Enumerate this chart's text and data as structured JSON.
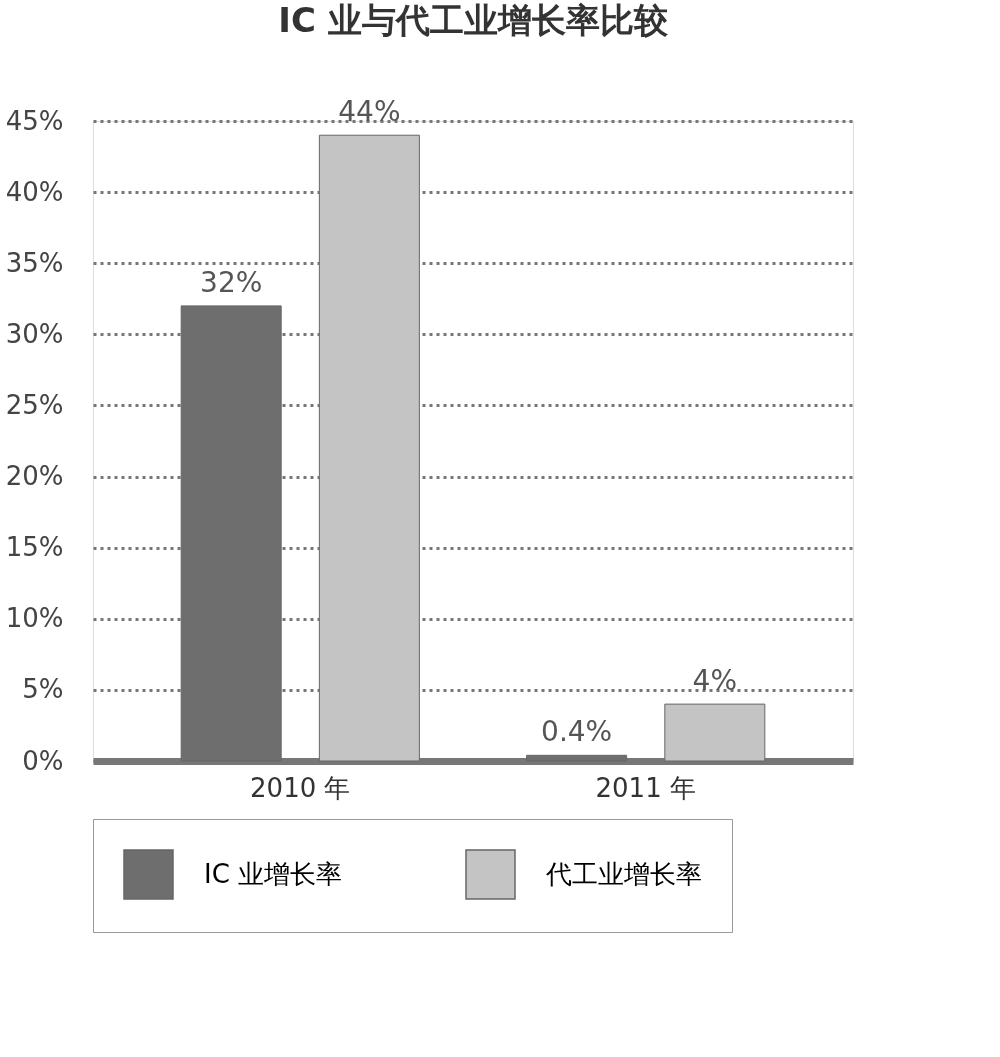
{
  "chart_data": {
    "type": "bar",
    "title": "IC 业与代工业增长率比较",
    "categories": [
      "2010 年",
      "2011 年"
    ],
    "series": [
      {
        "name": "IC 业增长率",
        "color": "#6e6e6e",
        "values": [
          32,
          0.4
        ],
        "value_labels": [
          "32%",
          "0.4%"
        ]
      },
      {
        "name": "代工业增长率",
        "color": "#c4c4c4",
        "values": [
          44,
          4
        ],
        "value_labels": [
          "44%",
          "4%"
        ]
      }
    ],
    "ylim": [
      0,
      45
    ],
    "yticks": [
      {
        "value": 0,
        "label": "0%"
      },
      {
        "value": 5,
        "label": "5%"
      },
      {
        "value": 10,
        "label": "10%"
      },
      {
        "value": 15,
        "label": "15%"
      },
      {
        "value": 20,
        "label": "20%"
      },
      {
        "value": 25,
        "label": "25%"
      },
      {
        "value": 30,
        "label": "30%"
      },
      {
        "value": 35,
        "label": "35%"
      },
      {
        "value": 40,
        "label": "40%"
      },
      {
        "value": 45,
        "label": "45%"
      }
    ],
    "grid": "y",
    "legend": "bottom"
  }
}
